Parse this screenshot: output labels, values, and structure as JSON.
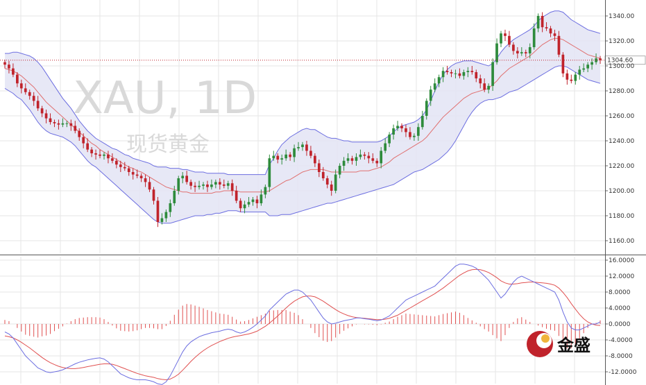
{
  "watermark": {
    "symbol": "XAU, 1D",
    "subtitle": "现货黄金"
  },
  "logo": {
    "text": "金盛"
  },
  "colors": {
    "up": "#2e8b3c",
    "down": "#c0232b",
    "bands_fill": "#e3e4f4",
    "bands_line": "#6b6de0",
    "ma_line": "#e07070",
    "grid": "#e6e6e6",
    "last_price_line": "#c0232b",
    "macd_line": "#6b6de0",
    "signal_line": "#e05050",
    "hist": "#e05050",
    "logo_red": "#c0232b"
  },
  "chart_data": [
    {
      "type": "candlestick",
      "title": "",
      "price_ticks": [
        "1340.00",
        "1320.00",
        "1300.00",
        "1280.00",
        "1260.00",
        "1240.00",
        "1220.00",
        "1200.00",
        "1180.00",
        "1160.00"
      ],
      "ylim": [
        1150,
        1350
      ],
      "last_price": 1304.6,
      "last_price_label": "1304.60",
      "close": [
        1301,
        1298,
        1293,
        1286,
        1282,
        1279,
        1276,
        1272,
        1266,
        1262,
        1258,
        1255,
        1254,
        1253,
        1254,
        1254,
        1252,
        1248,
        1243,
        1238,
        1233,
        1230,
        1229,
        1228,
        1229,
        1226,
        1224,
        1221,
        1219,
        1218,
        1215,
        1213,
        1212,
        1210,
        1207,
        1201,
        1192,
        1175,
        1178,
        1183,
        1190,
        1200,
        1210,
        1212,
        1207,
        1204,
        1203,
        1204,
        1205,
        1203,
        1205,
        1207,
        1205,
        1204,
        1206,
        1200,
        1192,
        1186,
        1189,
        1191,
        1193,
        1190,
        1197,
        1203,
        1226,
        1228,
        1225,
        1226,
        1229,
        1227,
        1234,
        1235,
        1237,
        1232,
        1228,
        1222,
        1215,
        1210,
        1205,
        1200,
        1213,
        1220,
        1224,
        1226,
        1224,
        1227,
        1229,
        1228,
        1226,
        1224,
        1222,
        1232,
        1238,
        1245,
        1250,
        1252,
        1250,
        1247,
        1243,
        1244,
        1251,
        1260,
        1272,
        1281,
        1286,
        1291,
        1296,
        1295,
        1294,
        1294,
        1292,
        1295,
        1296,
        1295,
        1290,
        1286,
        1281,
        1284,
        1303,
        1318,
        1326,
        1324,
        1317,
        1312,
        1310,
        1311,
        1310,
        1315,
        1330,
        1340,
        1331,
        1330,
        1326,
        1324,
        1309,
        1294,
        1289,
        1288,
        1293,
        1297,
        1298,
        1301,
        1303,
        1306,
        1304.6
      ],
      "bands_upper": [
        1310,
        1310,
        1311,
        1311,
        1310,
        1309,
        1308,
        1306,
        1303,
        1299,
        1294,
        1289,
        1284,
        1279,
        1274,
        1270,
        1266,
        1261,
        1256,
        1252,
        1248,
        1245,
        1242,
        1240,
        1238,
        1236,
        1234,
        1233,
        1231,
        1229,
        1228,
        1226,
        1225,
        1224,
        1223,
        1222,
        1220,
        1219,
        1219,
        1219,
        1218,
        1218,
        1218,
        1217,
        1217,
        1216,
        1215,
        1215,
        1215,
        1214,
        1214,
        1214,
        1214,
        1214,
        1213,
        1213,
        1213,
        1213,
        1213,
        1213,
        1213,
        1213,
        1213,
        1213,
        1221,
        1226,
        1232,
        1237,
        1240,
        1243,
        1245,
        1247,
        1249,
        1250,
        1249,
        1249,
        1247,
        1245,
        1243,
        1242,
        1242,
        1241,
        1240,
        1240,
        1239,
        1239,
        1239,
        1239,
        1239,
        1239,
        1239,
        1240,
        1242,
        1244,
        1247,
        1250,
        1252,
        1253,
        1254,
        1255,
        1257,
        1260,
        1265,
        1272,
        1280,
        1287,
        1293,
        1297,
        1300,
        1302,
        1303,
        1304,
        1304,
        1304,
        1303,
        1302,
        1301,
        1300,
        1302,
        1306,
        1311,
        1315,
        1318,
        1321,
        1323,
        1325,
        1327,
        1329,
        1332,
        1336,
        1339,
        1341,
        1343,
        1344,
        1344,
        1343,
        1340,
        1337,
        1335,
        1333,
        1331,
        1329,
        1328,
        1327,
        1326
      ],
      "bands_middle": [
        1298,
        1297,
        1296,
        1294,
        1292,
        1289,
        1286,
        1283,
        1279,
        1275,
        1271,
        1268,
        1265,
        1262,
        1259,
        1256,
        1253,
        1250,
        1247,
        1244,
        1241,
        1238,
        1236,
        1233,
        1231,
        1229,
        1227,
        1225,
        1223,
        1221,
        1219,
        1218,
        1216,
        1215,
        1213,
        1211,
        1209,
        1207,
        1205,
        1203,
        1202,
        1201,
        1200,
        1199,
        1199,
        1198,
        1198,
        1198,
        1198,
        1198,
        1198,
        1199,
        1199,
        1200,
        1200,
        1200,
        1200,
        1199,
        1199,
        1199,
        1199,
        1199,
        1199,
        1199,
        1200,
        1202,
        1204,
        1206,
        1208,
        1209,
        1211,
        1213,
        1215,
        1216,
        1217,
        1217,
        1217,
        1217,
        1216,
        1215,
        1215,
        1215,
        1215,
        1215,
        1215,
        1215,
        1216,
        1216,
        1216,
        1217,
        1218,
        1219,
        1221,
        1223,
        1226,
        1228,
        1230,
        1232,
        1234,
        1236,
        1238,
        1240,
        1243,
        1247,
        1251,
        1255,
        1259,
        1262,
        1265,
        1268,
        1271,
        1274,
        1276,
        1278,
        1279,
        1280,
        1281,
        1282,
        1285,
        1288,
        1292,
        1295,
        1298,
        1300,
        1302,
        1304,
        1306,
        1308,
        1311,
        1314,
        1317,
        1319,
        1321,
        1322,
        1322,
        1321,
        1319,
        1317,
        1315,
        1313,
        1311,
        1309,
        1308,
        1307,
        1306
      ],
      "bands_lower": [
        1282,
        1280,
        1278,
        1275,
        1273,
        1269,
        1265,
        1260,
        1255,
        1251,
        1248,
        1246,
        1245,
        1244,
        1243,
        1241,
        1239,
        1236,
        1232,
        1228,
        1224,
        1221,
        1219,
        1216,
        1213,
        1210,
        1207,
        1204,
        1201,
        1198,
        1195,
        1192,
        1189,
        1186,
        1183,
        1180,
        1177,
        1175,
        1174,
        1174,
        1174,
        1175,
        1176,
        1177,
        1178,
        1179,
        1180,
        1180,
        1180,
        1181,
        1181,
        1182,
        1182,
        1183,
        1184,
        1184,
        1184,
        1183,
        1183,
        1183,
        1183,
        1183,
        1183,
        1183,
        1180,
        1180,
        1180,
        1181,
        1181,
        1181,
        1182,
        1183,
        1184,
        1185,
        1186,
        1187,
        1188,
        1189,
        1190,
        1190,
        1191,
        1192,
        1193,
        1194,
        1195,
        1196,
        1197,
        1198,
        1199,
        1200,
        1201,
        1202,
        1203,
        1204,
        1205,
        1207,
        1209,
        1211,
        1213,
        1215,
        1216,
        1217,
        1219,
        1221,
        1223,
        1225,
        1228,
        1231,
        1235,
        1240,
        1246,
        1252,
        1258,
        1263,
        1267,
        1270,
        1272,
        1273,
        1273,
        1274,
        1275,
        1277,
        1279,
        1280,
        1281,
        1283,
        1285,
        1287,
        1289,
        1291,
        1293,
        1295,
        1297,
        1299,
        1300,
        1300,
        1299,
        1297,
        1295,
        1293,
        1291,
        1289,
        1288,
        1287,
        1286
      ]
    },
    {
      "type": "macd",
      "title": "",
      "y_ticks": [
        "16.0000",
        "12.0000",
        "8.0000",
        "4.0000",
        "0.0000",
        "-4.0000",
        "-8.0000",
        "-12.0000"
      ],
      "ylim": [
        -14,
        17
      ],
      "macd": [
        -2.0,
        -2.5,
        -3.5,
        -5.0,
        -6.5,
        -8.0,
        -9.0,
        -10.0,
        -11.0,
        -11.5,
        -12.0,
        -12.2,
        -12.0,
        -11.8,
        -11.5,
        -11.0,
        -10.5,
        -10.0,
        -9.6,
        -9.3,
        -9.0,
        -8.8,
        -8.6,
        -8.5,
        -8.8,
        -9.5,
        -10.5,
        -11.5,
        -12.5,
        -13.0,
        -13.5,
        -13.8,
        -14.0,
        -14.0,
        -14.0,
        -14.2,
        -14.5,
        -15.0,
        -15.2,
        -14.5,
        -13.0,
        -11.0,
        -9.0,
        -7.0,
        -5.5,
        -4.5,
        -3.8,
        -3.2,
        -2.8,
        -2.5,
        -2.2,
        -2.0,
        -1.8,
        -1.5,
        -1.3,
        -1.5,
        -2.0,
        -2.3,
        -2.0,
        -1.5,
        -0.8,
        0.0,
        1.0,
        2.0,
        3.5,
        4.5,
        5.5,
        6.5,
        7.5,
        8.0,
        8.5,
        8.5,
        8.0,
        7.0,
        6.0,
        4.5,
        3.0,
        1.5,
        0.5,
        0.0,
        0.2,
        0.5,
        0.8,
        1.0,
        1.2,
        1.5,
        1.5,
        1.3,
        1.2,
        1.0,
        0.8,
        1.0,
        1.5,
        2.0,
        3.0,
        4.0,
        5.0,
        6.0,
        6.5,
        7.0,
        7.5,
        8.0,
        8.5,
        9.0,
        9.5,
        10.5,
        11.5,
        12.5,
        13.5,
        14.5,
        15.0,
        15.0,
        14.8,
        14.5,
        14.0,
        13.0,
        12.0,
        11.0,
        9.5,
        8.0,
        6.5,
        7.5,
        9.0,
        10.5,
        11.5,
        12.0,
        11.5,
        11.0,
        10.5,
        10.0,
        9.5,
        9.0,
        8.5,
        8.0,
        6.0,
        3.0,
        0.5,
        -1.0,
        -1.5,
        -1.5,
        -1.0,
        -0.5,
        0.0,
        0.0,
        0.5,
        1.0,
        1.5
      ],
      "signal": [
        -3.0,
        -3.2,
        -3.5,
        -4.0,
        -4.6,
        -5.3,
        -6.0,
        -6.8,
        -7.6,
        -8.4,
        -9.1,
        -9.7,
        -10.2,
        -10.6,
        -10.9,
        -11.1,
        -11.2,
        -11.2,
        -11.1,
        -10.9,
        -10.7,
        -10.5,
        -10.3,
        -10.1,
        -10.0,
        -10.0,
        -10.1,
        -10.4,
        -10.8,
        -11.2,
        -11.6,
        -12.0,
        -12.4,
        -12.7,
        -13.0,
        -13.2,
        -13.4,
        -13.7,
        -13.9,
        -14.0,
        -13.8,
        -13.3,
        -12.6,
        -11.6,
        -10.5,
        -9.4,
        -8.4,
        -7.5,
        -6.7,
        -6.0,
        -5.4,
        -4.9,
        -4.4,
        -4.0,
        -3.6,
        -3.3,
        -3.1,
        -2.9,
        -2.7,
        -2.5,
        -2.2,
        -1.8,
        -1.2,
        -0.6,
        0.2,
        1.1,
        2.0,
        3.0,
        4.0,
        4.9,
        5.7,
        6.3,
        6.8,
        7.0,
        7.0,
        6.8,
        6.3,
        5.7,
        5.0,
        4.3,
        3.6,
        3.0,
        2.5,
        2.1,
        1.8,
        1.6,
        1.5,
        1.4,
        1.3,
        1.2,
        1.1,
        1.1,
        1.2,
        1.4,
        1.8,
        2.2,
        2.8,
        3.4,
        4.0,
        4.6,
        5.2,
        5.8,
        6.4,
        7.0,
        7.6,
        8.3,
        9.0,
        9.8,
        10.6,
        11.4,
        12.2,
        12.8,
        13.3,
        13.6,
        13.7,
        13.6,
        13.3,
        12.9,
        12.3,
        11.6,
        10.8,
        10.3,
        10.0,
        10.0,
        10.1,
        10.3,
        10.4,
        10.5,
        10.5,
        10.4,
        10.3,
        10.2,
        10.0,
        9.7,
        9.0,
        7.9,
        6.6,
        5.1,
        3.7,
        2.4,
        1.3,
        0.5,
        0.0,
        -0.3,
        -0.4,
        -0.3,
        -0.1
      ]
    }
  ]
}
